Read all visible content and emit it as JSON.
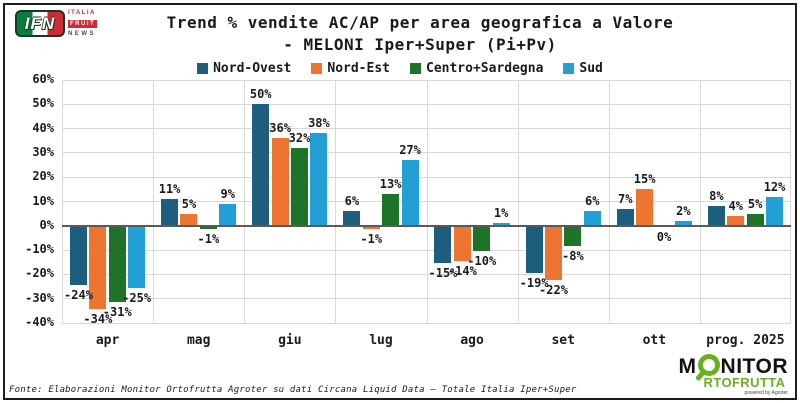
{
  "header": {
    "title_line1": "Trend % vendite AC/AP per area geografica a Valore",
    "title_line2": "- MELONI Iper+Super (Pi+Pv)"
  },
  "logo_ifn": {
    "abbr": "IFN",
    "italia": "ITALIA",
    "fruit": "FRUIT",
    "news": "NEWS"
  },
  "chart_data": {
    "type": "bar",
    "title": "Trend % vendite AC/AP per area geografica a Valore - MELONI Iper+Super (Pi+Pv)",
    "categories": [
      "apr",
      "mag",
      "giu",
      "lug",
      "ago",
      "set",
      "ott",
      "prog. 2025"
    ],
    "series": [
      {
        "name": "Nord-Ovest",
        "color": "#1d5d7e",
        "values": [
          -24,
          11,
          50,
          6,
          -15,
          -19,
          7,
          8
        ]
      },
      {
        "name": "Nord-Est",
        "color": "#ed7431",
        "values": [
          -34,
          5,
          36,
          -1,
          -14,
          -22,
          15,
          4
        ]
      },
      {
        "name": "Centro+Sardegna",
        "color": "#1e7328",
        "values": [
          -31,
          -1,
          32,
          13,
          -10,
          -8,
          0,
          5
        ]
      },
      {
        "name": "Sud",
        "color": "#22a0d6",
        "values": [
          -25,
          9,
          38,
          27,
          1,
          6,
          2,
          12
        ]
      }
    ],
    "ylim": [
      -40,
      60
    ],
    "ytick_step": 10,
    "value_suffix": "%",
    "grid": true,
    "legend_position": "top",
    "colors": {
      "gridline": "#d9d9d9",
      "zero_axis": "#595959",
      "text": "#1a1a1a"
    }
  },
  "footer": {
    "fonte": "Fonte: Elaborazioni Monitor Ortofrutta Agroter su dati Circana Liquid Data – Totale Italia Iper+Super"
  },
  "logo_monitor": {
    "part1": "M",
    "part2": "NITOR",
    "line2": "RTOFRUTTA",
    "powered": "powered by Agroter"
  }
}
